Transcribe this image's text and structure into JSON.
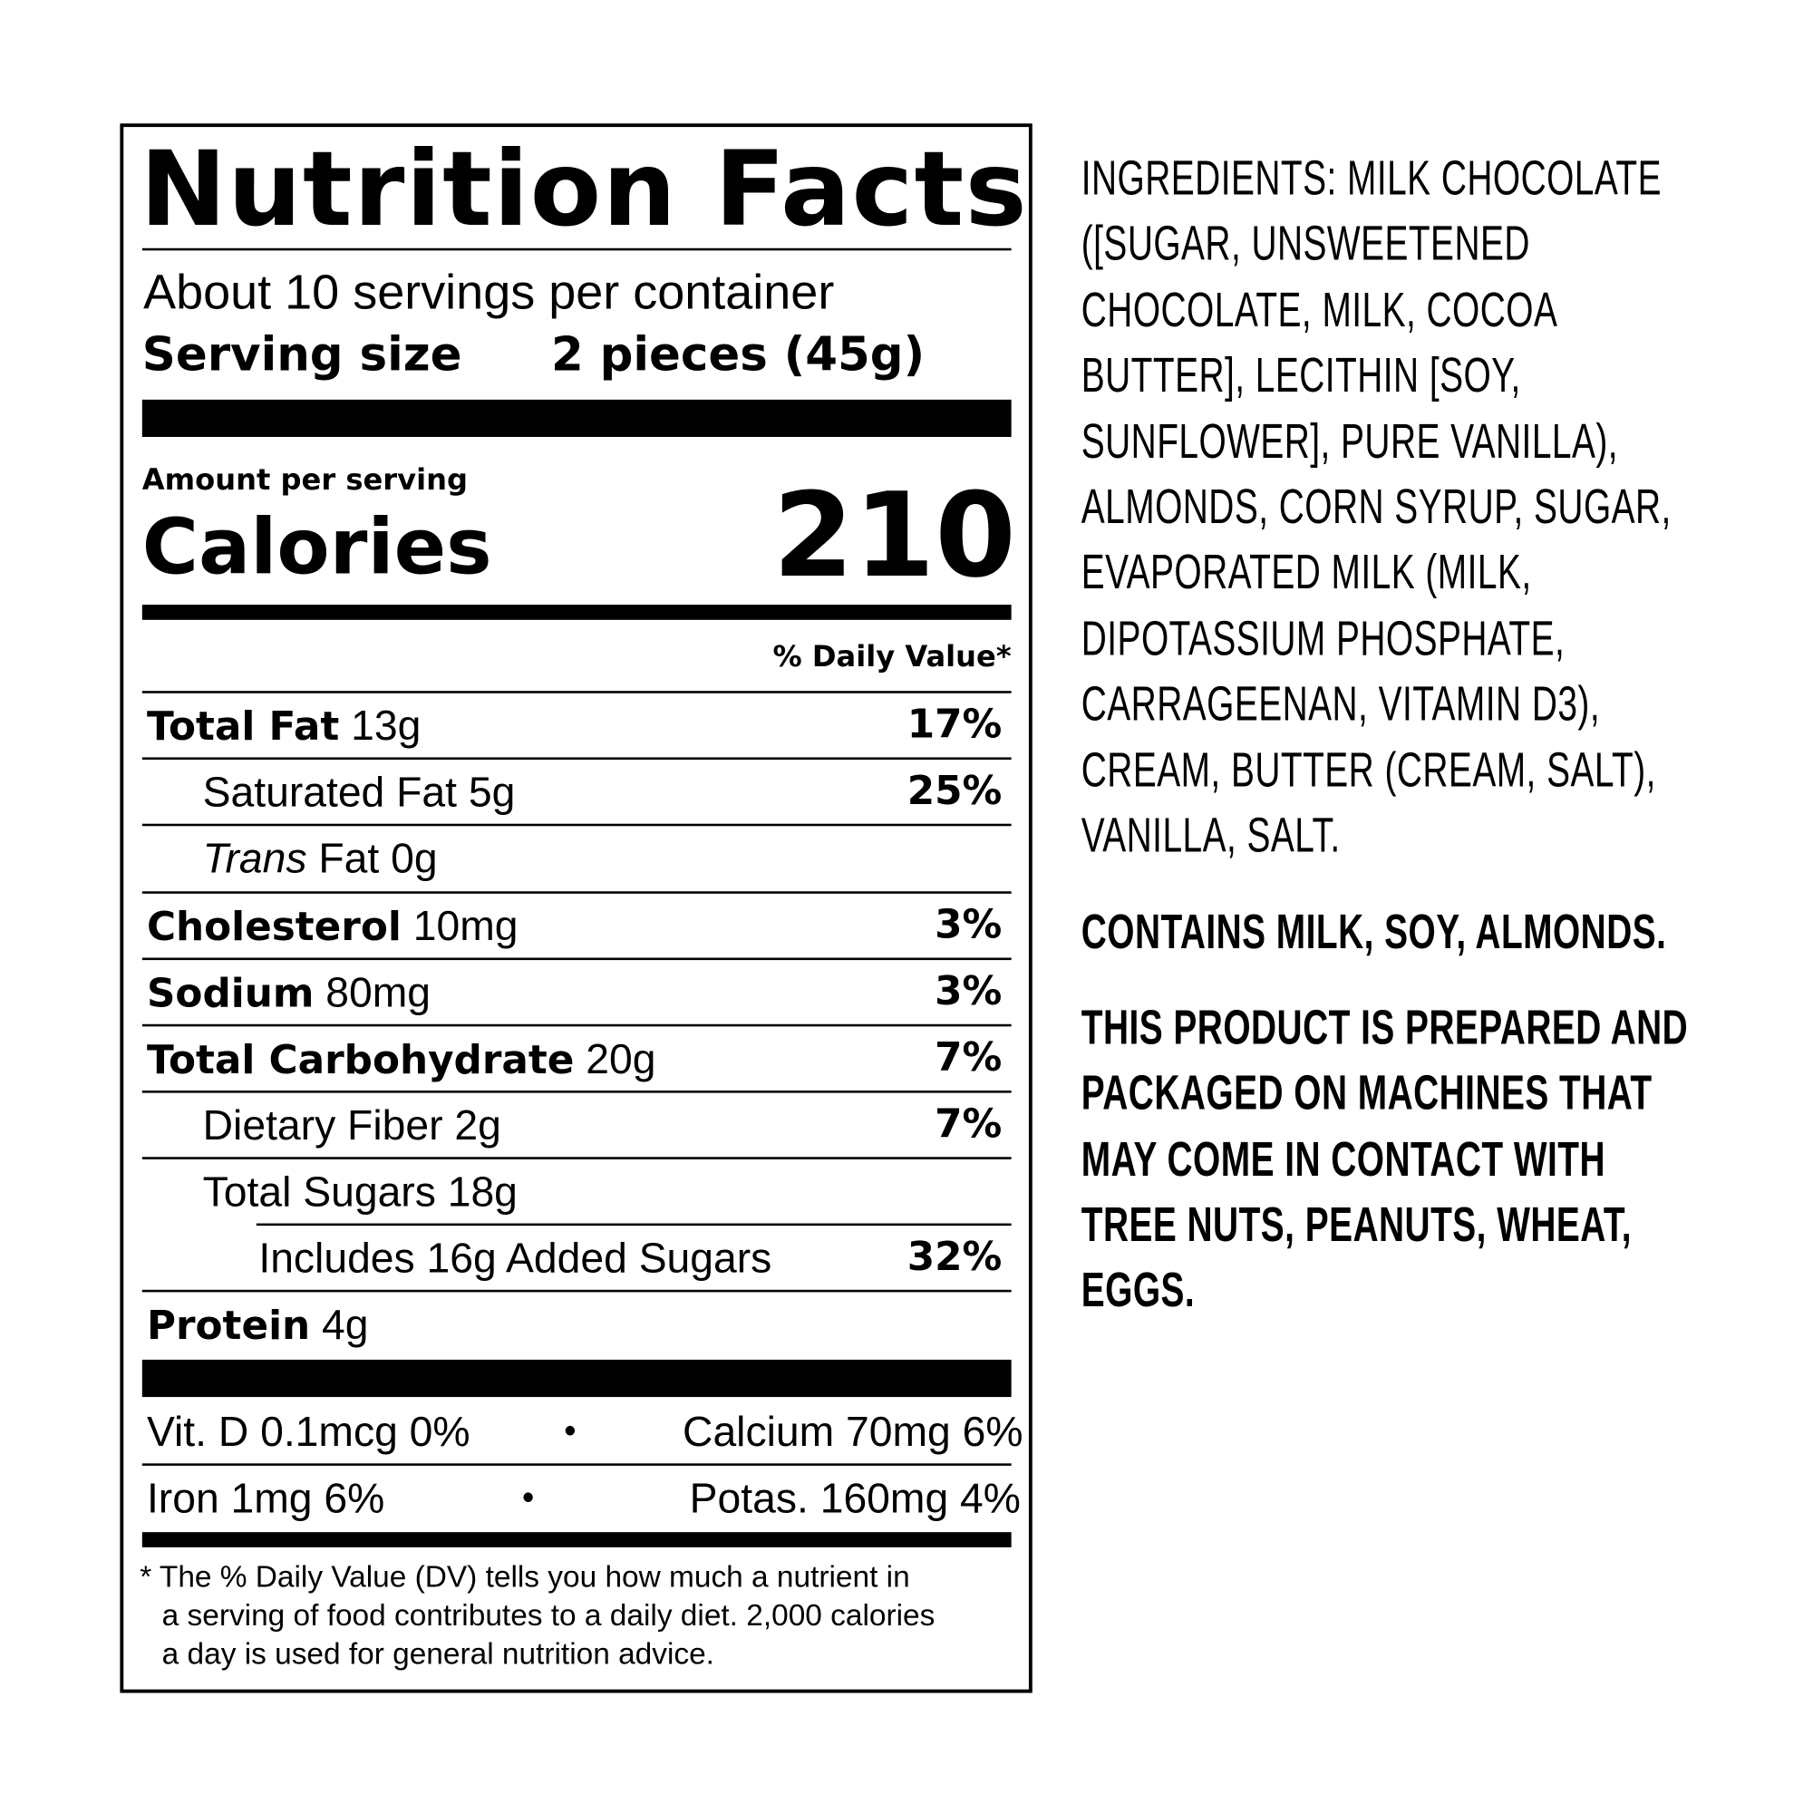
{
  "label": {
    "title": "Nutrition Facts",
    "servings_per_container": "About 10 servings per container",
    "serving_size_label": "Serving size",
    "serving_size_value": "2 pieces (45g)",
    "amount_per_serving": "Amount per serving",
    "calories_label": "Calories",
    "calories_value": "210",
    "daily_value_header": "% Daily Value*",
    "nutrients": [
      {
        "name": "Total Fat",
        "amount": "13g",
        "dv": "17%",
        "bold": true
      },
      {
        "name": "Saturated Fat",
        "amount": "5g",
        "dv": "25%",
        "bold": false
      },
      {
        "name": "Trans",
        "name_suffix": "Fat",
        "amount": "0g",
        "dv": "",
        "bold": false
      },
      {
        "name": "Cholesterol",
        "amount": "10mg",
        "dv": "3%",
        "bold": true
      },
      {
        "name": "Sodium",
        "amount": "80mg",
        "dv": "3%",
        "bold": true
      },
      {
        "name": "Total Carbohydrate",
        "amount": "20g",
        "dv": "7%",
        "bold": true
      },
      {
        "name": "Dietary Fiber",
        "amount": "2g",
        "dv": "7%",
        "bold": false
      },
      {
        "name": "Total Sugars",
        "amount": "18g",
        "dv": "",
        "bold": false
      },
      {
        "name": "Includes 16g Added Sugars",
        "amount": "",
        "dv": "32%",
        "bold": false
      },
      {
        "name": "Protein",
        "amount": "4g",
        "dv": "",
        "bold": true
      }
    ],
    "vitamins": [
      {
        "left": "Vit. D 0.1mcg 0%",
        "right": "Calcium 70mg 6%"
      },
      {
        "left": "Iron 1mg 6%",
        "right": "Potas. 160mg 4%"
      }
    ],
    "bullet": "•",
    "footnote": [
      "* The % Daily Value (DV) tells you how much a nutrient in",
      "a serving of food contributes to a daily diet. 2,000 calories",
      "a day is used for general nutrition advice."
    ]
  },
  "ingredients": {
    "lines": [
      "INGREDIENTS: MILK CHOCOLATE",
      "([SUGAR, UNSWEETENED",
      "CHOCOLATE, MILK, COCOA",
      "BUTTER], LECITHIN [SOY,",
      "SUNFLOWER], PURE VANILLA),",
      "ALMONDS, CORN SYRUP, SUGAR,",
      "EVAPORATED MILK (MILK,",
      "DIPOTASSIUM PHOSPHATE,",
      "CARRAGEENAN, VITAMIN D3),",
      "CREAM, BUTTER (CREAM, SALT),",
      "VANILLA, SALT."
    ],
    "contains": "CONTAINS MILK, SOY, ALMONDS.",
    "warning_lines": [
      "THIS PRODUCT IS PREPARED AND",
      "PACKAGED ON MACHINES THAT",
      "MAY COME IN CONTACT WITH",
      "TREE NUTS, PEANUTS, WHEAT,",
      "EGGS."
    ]
  }
}
